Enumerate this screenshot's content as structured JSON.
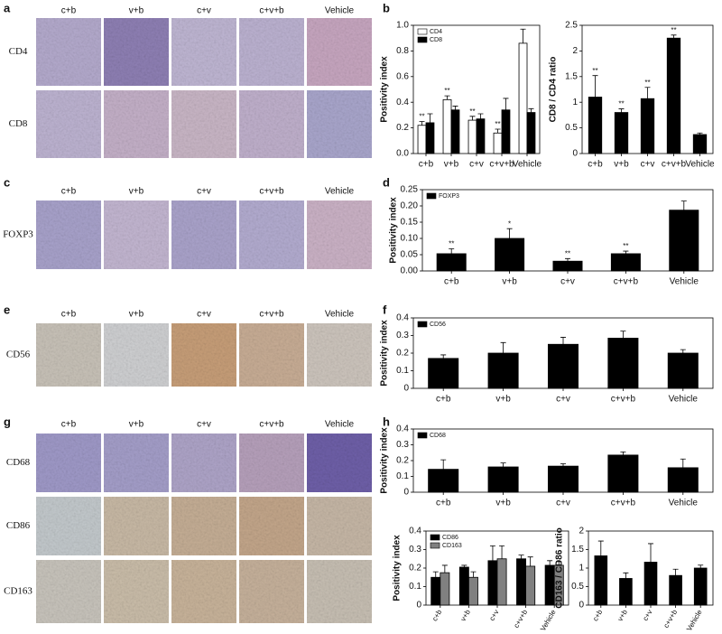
{
  "figure": {
    "panel_letters": [
      "a",
      "b",
      "c",
      "d",
      "e",
      "f",
      "g",
      "h"
    ],
    "image_panels": [
      {
        "columns": [
          "c+b",
          "v+b",
          "c+v",
          "c+v+b",
          "Vehicle"
        ],
        "rows": [
          "CD4",
          "CD8"
        ]
      },
      {
        "columns": [
          "c+b",
          "v+b",
          "c+v",
          "c+v+b",
          "Vehicle"
        ],
        "rows": [
          "FOXP3"
        ]
      },
      {
        "columns": [
          "c+b",
          "v+b",
          "c+v",
          "c+v+b",
          "Vehicle"
        ],
        "rows": [
          "CD56"
        ]
      },
      {
        "columns": [
          "c+b",
          "v+b",
          "c+v",
          "c+v+b",
          "Vehicle"
        ],
        "rows": [
          "CD68",
          "CD86",
          "CD163"
        ]
      }
    ]
  },
  "chart_data": [
    {
      "type": "bar",
      "ylabel": "Positivity index",
      "categories": [
        "c+b",
        "v+b",
        "c+v",
        "c+v+b",
        "Vehicle"
      ],
      "series": [
        {
          "name": "CD4",
          "color": "#ffffff",
          "values": [
            0.22,
            0.42,
            0.26,
            0.16,
            0.86
          ],
          "errors": [
            0.03,
            0.03,
            0.03,
            0.03,
            0.11
          ],
          "annotations": [
            "**",
            "**",
            "**",
            "**",
            null
          ]
        },
        {
          "name": "CD8",
          "color": "#000000",
          "values": [
            0.24,
            0.34,
            0.27,
            0.34,
            0.32
          ],
          "errors": [
            0.07,
            0.03,
            0.04,
            0.09,
            0.03
          ]
        }
      ],
      "ylim": [
        0,
        1.0
      ],
      "yticks": [
        {
          "value": 0,
          "label": "0.0"
        },
        0.2,
        0.4,
        0.6,
        0.8,
        {
          "value": 1.0,
          "label": "1.0"
        }
      ]
    },
    {
      "type": "bar",
      "ylabel": "CD8 / CD4 ratio",
      "categories": [
        "c+b",
        "v+b",
        "c+v",
        "c+v+b",
        "Vehicle"
      ],
      "series": [
        {
          "color": "#000000",
          "values": [
            1.1,
            0.8,
            1.07,
            2.25,
            0.37
          ],
          "errors": [
            0.42,
            0.07,
            0.22,
            0.06,
            0.03
          ],
          "annotations": [
            "**",
            "**",
            "**",
            "**",
            null
          ]
        }
      ],
      "ylim": [
        0,
        2.5
      ],
      "yticks": [
        0,
        0.5,
        1,
        1.5,
        2,
        2.5
      ]
    },
    {
      "type": "bar",
      "ylabel": "Positivity index",
      "categories": [
        "c+b",
        "v+b",
        "c+v",
        "c+v+b",
        "Vehicle"
      ],
      "series": [
        {
          "name": "FOXP3",
          "color": "#000000",
          "values": [
            0.053,
            0.1,
            0.03,
            0.053,
            0.187
          ],
          "errors": [
            0.015,
            0.03,
            0.008,
            0.008,
            0.028
          ],
          "annotations": [
            "**",
            "*",
            "**",
            "**",
            null
          ]
        }
      ],
      "ylim": [
        0,
        0.25
      ],
      "yticks": [
        {
          "value": 0,
          "label": "0.00"
        },
        {
          "value": 0.05,
          "label": "0.05"
        },
        {
          "value": 0.1,
          "label": "0.10"
        },
        {
          "value": 0.15,
          "label": "0.15"
        },
        {
          "value": 0.2,
          "label": "0.20"
        },
        {
          "value": 0.25,
          "label": "0.25"
        }
      ]
    },
    {
      "type": "bar",
      "ylabel": "Positivity index",
      "categories": [
        "c+b",
        "v+b",
        "c+v",
        "c+v+b",
        "Vehicle"
      ],
      "series": [
        {
          "name": "CD56",
          "color": "#000000",
          "values": [
            0.17,
            0.2,
            0.25,
            0.285,
            0.2
          ],
          "errors": [
            0.02,
            0.06,
            0.04,
            0.04,
            0.02
          ]
        }
      ],
      "ylim": [
        0,
        0.4
      ],
      "yticks": [
        0,
        0.1,
        0.2,
        0.3,
        0.4
      ]
    },
    {
      "type": "bar",
      "ylabel": "Positivity index",
      "categories": [
        "c+b",
        "v+b",
        "c+v",
        "c+v+b",
        "Vehicle"
      ],
      "series": [
        {
          "name": "CD68",
          "color": "#000000",
          "values": [
            0.145,
            0.16,
            0.165,
            0.235,
            0.155
          ],
          "errors": [
            0.06,
            0.025,
            0.015,
            0.02,
            0.055
          ]
        }
      ],
      "ylim": [
        0,
        0.4
      ],
      "yticks": [
        0,
        0.1,
        0.2,
        0.3,
        0.4
      ]
    },
    {
      "type": "bar",
      "ylabel": "Positivity index",
      "categories": [
        "c+b",
        "v+b",
        "c+v",
        "c+v+b",
        "Vehicle"
      ],
      "series": [
        {
          "name": "CD86",
          "color": "#000000",
          "values": [
            0.15,
            0.205,
            0.24,
            0.25,
            0.215
          ],
          "errors": [
            0.03,
            0.01,
            0.08,
            0.02,
            0.025
          ]
        },
        {
          "name": "CD163",
          "color": "#808080",
          "values": [
            0.175,
            0.15,
            0.25,
            0.21,
            0.215
          ],
          "errors": [
            0.04,
            0.03,
            0.07,
            0.05,
            0.02
          ]
        }
      ],
      "ylim": [
        0,
        0.4
      ],
      "yticks": [
        0,
        0.1,
        0.2,
        0.3,
        0.4
      ]
    },
    {
      "type": "bar",
      "ylabel": "CD163 / CD86 ratio",
      "categories": [
        "c+b",
        "v+b",
        "c+v",
        "c+v+b",
        "Vehicle"
      ],
      "series": [
        {
          "color": "#000000",
          "values": [
            1.33,
            0.72,
            1.16,
            0.8,
            1.0
          ],
          "errors": [
            0.4,
            0.15,
            0.5,
            0.17,
            0.08
          ]
        }
      ],
      "ylim": [
        0,
        2
      ],
      "yticks": [
        0,
        0.5,
        1,
        1.5,
        2
      ]
    }
  ]
}
